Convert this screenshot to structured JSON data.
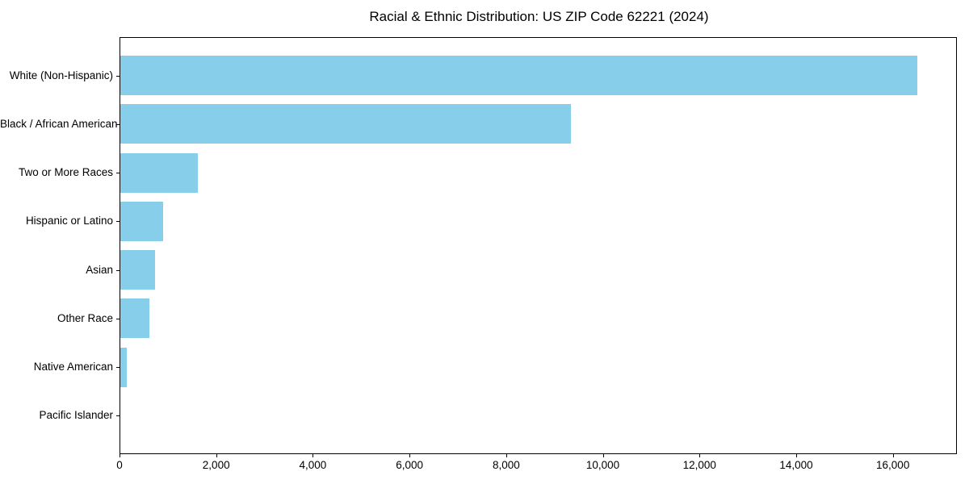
{
  "chart_data": {
    "type": "bar",
    "orientation": "horizontal",
    "title": "Racial & Ethnic Distribution: US ZIP Code 62221 (2024)",
    "xlabel": "",
    "ylabel": "",
    "categories": [
      "White (Non-Hispanic)",
      "Black / African American",
      "Two or More Races",
      "Hispanic or Latino",
      "Asian",
      "Other Race",
      "Native American",
      "Pacific Islander"
    ],
    "values": [
      16500,
      9340,
      1620,
      900,
      740,
      620,
      155,
      10
    ],
    "xlim": [
      0,
      17325
    ],
    "x_ticks": [
      0,
      2000,
      4000,
      6000,
      8000,
      10000,
      12000,
      14000,
      16000
    ],
    "x_tick_labels": [
      "0",
      "2,000",
      "4,000",
      "6,000",
      "8,000",
      "10,000",
      "12,000",
      "14,000",
      "16,000"
    ],
    "bar_color": "#87CEEB",
    "spine_color": "#000000",
    "grid": false,
    "legend": null
  }
}
